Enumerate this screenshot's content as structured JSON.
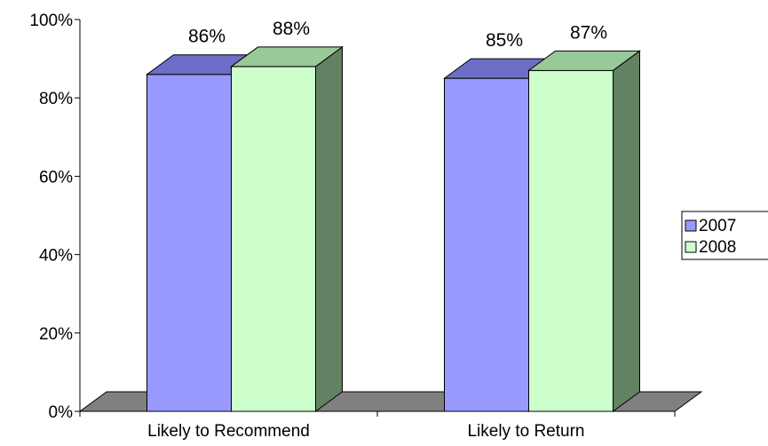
{
  "chart_data": {
    "type": "bar",
    "categories": [
      "Likely to Recommend",
      "Likely to Return"
    ],
    "series": [
      {
        "name": "2007",
        "values": [
          86,
          85
        ],
        "color": "#9999ff",
        "top_color": "#6d6dc8",
        "side_color": "#5c5cae",
        "data_labels": [
          "86%",
          "85%"
        ]
      },
      {
        "name": "2008",
        "values": [
          88,
          87
        ],
        "color": "#ccffcc",
        "top_color": "#99c899",
        "side_color": "#638263",
        "data_labels": [
          "88%",
          "87%"
        ]
      }
    ],
    "ylim": [
      0,
      100
    ],
    "yticks": [
      0,
      20,
      40,
      60,
      80,
      100
    ],
    "ytick_labels": [
      "0%",
      "20%",
      "40%",
      "60%",
      "80%",
      "100%"
    ],
    "floor_color": "#808080",
    "legend": {
      "position": "right"
    },
    "grid": false,
    "title": "",
    "xlabel": "",
    "ylabel": ""
  }
}
